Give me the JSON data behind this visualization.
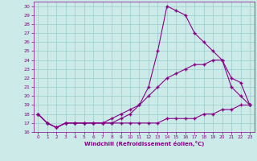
{
  "xlabel": "Windchill (Refroidissement éolien,°C)",
  "bg_color": "#cceae8",
  "line_color": "#880088",
  "grid_color": "#99cccc",
  "xlim": [
    -0.5,
    23.5
  ],
  "ylim": [
    16,
    30.5
  ],
  "xticks": [
    0,
    1,
    2,
    3,
    4,
    5,
    6,
    7,
    8,
    9,
    10,
    11,
    12,
    13,
    14,
    15,
    16,
    17,
    18,
    19,
    20,
    21,
    22,
    23
  ],
  "yticks": [
    16,
    17,
    18,
    19,
    20,
    21,
    22,
    23,
    24,
    25,
    26,
    27,
    28,
    29,
    30
  ],
  "line1_x": [
    0,
    1,
    2,
    3,
    4,
    5,
    6,
    7,
    8,
    9,
    10,
    11,
    12,
    13,
    14,
    15,
    16,
    17,
    18,
    19,
    20,
    21,
    22,
    23
  ],
  "line1_y": [
    18,
    17,
    16.5,
    17,
    17,
    17,
    17,
    17,
    17,
    17.5,
    18,
    19,
    21,
    25,
    30,
    29.5,
    29,
    27,
    26,
    25,
    24,
    21,
    20,
    19
  ],
  "line2_x": [
    0,
    1,
    2,
    3,
    4,
    5,
    6,
    7,
    8,
    9,
    10,
    11,
    12,
    13,
    14,
    15,
    16,
    17,
    18,
    19,
    20,
    21,
    22,
    23
  ],
  "line2_y": [
    18,
    17,
    16.5,
    17,
    17,
    17,
    17,
    17,
    17.5,
    18,
    18.5,
    19,
    20,
    21,
    22,
    22.5,
    23,
    23.5,
    23.5,
    24,
    24,
    22,
    21.5,
    19
  ],
  "line3_x": [
    0,
    1,
    2,
    3,
    4,
    5,
    6,
    7,
    8,
    9,
    10,
    11,
    12,
    13,
    14,
    15,
    16,
    17,
    18,
    19,
    20,
    21,
    22,
    23
  ],
  "line3_y": [
    18,
    17,
    16.5,
    17,
    17,
    17,
    17,
    17,
    17,
    17,
    17,
    17,
    17,
    17,
    17.5,
    17.5,
    17.5,
    17.5,
    18,
    18,
    18.5,
    18.5,
    19,
    19
  ]
}
